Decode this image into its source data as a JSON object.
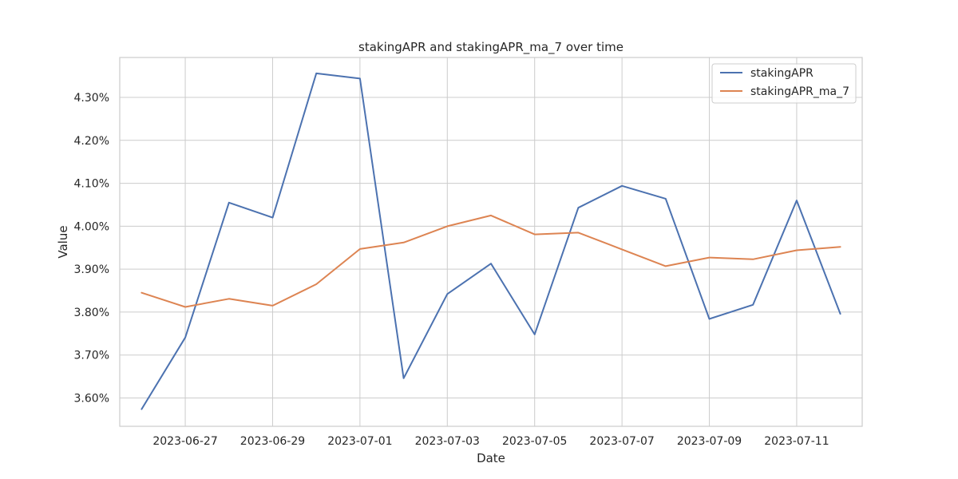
{
  "chart_data": {
    "type": "line",
    "title": "stakingAPR and stakingAPR_ma_7 over time",
    "xlabel": "Date",
    "ylabel": "Value",
    "x": [
      "2023-06-26",
      "2023-06-27",
      "2023-06-28",
      "2023-06-29",
      "2023-06-30",
      "2023-07-01",
      "2023-07-02",
      "2023-07-03",
      "2023-07-04",
      "2023-07-05",
      "2023-07-06",
      "2023-07-07",
      "2023-07-08",
      "2023-07-09",
      "2023-07-10",
      "2023-07-11",
      "2023-07-12"
    ],
    "x_ticks": [
      "2023-06-27",
      "2023-06-29",
      "2023-07-01",
      "2023-07-03",
      "2023-07-05",
      "2023-07-07",
      "2023-07-09",
      "2023-07-11"
    ],
    "y_ticks": [
      3.6,
      3.7,
      3.8,
      3.9,
      4.0,
      4.1,
      4.2,
      4.3
    ],
    "y_tick_labels": [
      "3.60%",
      "3.70%",
      "3.80%",
      "3.90%",
      "4.00%",
      "4.10%",
      "4.20%",
      "4.30%"
    ],
    "ylim": [
      3.534,
      4.393
    ],
    "grid": true,
    "legend_position": "top-right",
    "series": [
      {
        "name": "stakingAPR",
        "color": "#4c72b0",
        "values": [
          3.574,
          3.741,
          4.055,
          4.02,
          4.356,
          4.344,
          3.646,
          3.842,
          3.913,
          3.748,
          4.043,
          4.094,
          4.064,
          3.784,
          3.817,
          4.06,
          3.796
        ]
      },
      {
        "name": "stakingAPR_ma_7",
        "color": "#dd8452",
        "values": [
          3.845,
          3.812,
          3.831,
          3.815,
          3.865,
          3.947,
          3.962,
          4.0,
          4.025,
          3.981,
          3.985,
          3.946,
          3.907,
          3.927,
          3.923,
          3.944,
          3.952
        ]
      }
    ]
  }
}
